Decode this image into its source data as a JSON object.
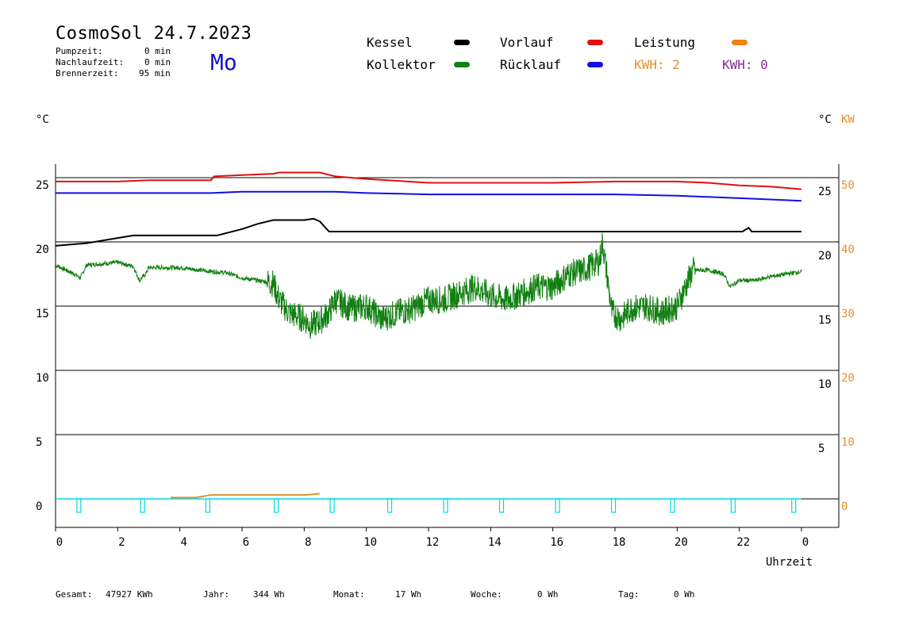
{
  "header": {
    "title": "CosmoSol 24.7.2023",
    "day": "Mo",
    "stats": [
      {
        "label": "Pumpzeit:",
        "value": "0 min"
      },
      {
        "label": "Nachlaufzeit:",
        "value": "0 min"
      },
      {
        "label": "Brennerzeit:",
        "value": "95 min"
      }
    ]
  },
  "legend": {
    "kessel": {
      "label": "Kessel",
      "color": "#000000"
    },
    "vorlauf": {
      "label": "Vorlauf",
      "color": "#e01010"
    },
    "leistung": {
      "label": "Leistung",
      "color": "#f08010"
    },
    "kollektor": {
      "label": "Kollektor",
      "color": "#108010"
    },
    "ruecklauf": {
      "label": "Rücklauf",
      "color": "#1010e0"
    },
    "kwh1": {
      "label": "KWH: 2",
      "color": "#e09030"
    },
    "kwh2": {
      "label": "KWH: 0",
      "color": "#803090"
    }
  },
  "axes": {
    "left_unit": "°C",
    "right_unit": "°C",
    "right_unit2": "KW",
    "xlabel": "Uhrzeit"
  },
  "footer": {
    "gesamt_label": "Gesamt:",
    "gesamt_value": "47927 KWh",
    "jahr_label": "Jahr:",
    "jahr_value": "344 Wh",
    "monat_label": "Monat:",
    "monat_value": "17 Wh",
    "woche_label": "Woche:",
    "woche_value": "0 Wh",
    "tag_label": "Tag:",
    "tag_value": "0 Wh"
  },
  "chart_data": {
    "type": "line",
    "xlim": [
      0,
      24
    ],
    "x_ticks": [
      "0",
      "2",
      "4",
      "6",
      "8",
      "10",
      "12",
      "14",
      "16",
      "18",
      "20",
      "22",
      "0"
    ],
    "ylim": [
      -2,
      26
    ],
    "y_left_ticks": [
      0,
      5,
      10,
      15,
      20,
      25
    ],
    "y_right_ticks_c": [
      5,
      10,
      15,
      20,
      25
    ],
    "y_right_ticks_kw": [
      0,
      10,
      20,
      30,
      40,
      50
    ],
    "grid": "horizontal",
    "series": [
      {
        "name": "Vorlauf",
        "color": "#e01010",
        "x": [
          0,
          2,
          3,
          4,
          5,
          5.1,
          6,
          7,
          7.2,
          8,
          8.5,
          9,
          10,
          12,
          13,
          14,
          16,
          18,
          20,
          21,
          22,
          23,
          24
        ],
        "y": [
          24.7,
          24.7,
          24.8,
          24.8,
          24.8,
          25.1,
          25.2,
          25.3,
          25.4,
          25.4,
          25.4,
          25.1,
          24.9,
          24.6,
          24.6,
          24.6,
          24.6,
          24.7,
          24.7,
          24.6,
          24.4,
          24.3,
          24.1
        ]
      },
      {
        "name": "Rücklauf",
        "color": "#1010e0",
        "x": [
          0,
          2,
          4,
          5,
          6,
          7,
          8,
          9,
          10,
          12,
          14,
          16,
          18,
          20,
          21,
          22,
          23,
          24
        ],
        "y": [
          23.8,
          23.8,
          23.8,
          23.8,
          23.9,
          23.9,
          23.9,
          23.9,
          23.8,
          23.7,
          23.7,
          23.7,
          23.7,
          23.6,
          23.5,
          23.4,
          23.3,
          23.2
        ]
      },
      {
        "name": "Kessel",
        "color": "#000000",
        "x": [
          0,
          1,
          2,
          2.5,
          5.2,
          6,
          6.5,
          7,
          7.5,
          8,
          8.3,
          8.5,
          8.8,
          9.5,
          12,
          16,
          20,
          22.1,
          22.3,
          22.4,
          24
        ],
        "y": [
          19.7,
          19.9,
          20.3,
          20.5,
          20.5,
          21.0,
          21.4,
          21.7,
          21.7,
          21.7,
          21.8,
          21.6,
          20.8,
          20.8,
          20.8,
          20.8,
          20.8,
          20.8,
          21.1,
          20.8,
          20.8
        ]
      },
      {
        "name": "Kollektor",
        "color": "#108010",
        "x": [
          0,
          0.6,
          0.8,
          1.0,
          2.0,
          2.5,
          2.7,
          2.9,
          3.0,
          3.5,
          4.0,
          5.0,
          5.5,
          6.0,
          6.5,
          7.0,
          7.2,
          7.5,
          8.0,
          8.2,
          8.5,
          8.8,
          9.0,
          9.5,
          10.0,
          10.5,
          11.0,
          11.5,
          12.0,
          12.5,
          13.0,
          13.5,
          14.0,
          14.5,
          15.0,
          15.5,
          16.0,
          16.5,
          17.0,
          17.5,
          17.6,
          17.9,
          18.2,
          18.5,
          19.0,
          19.5,
          20.0,
          20.5,
          21.0,
          21.5,
          21.7,
          22.0,
          22.5,
          23.0,
          23.5,
          24.0
        ],
        "y": [
          18.2,
          17.5,
          17.2,
          18.2,
          18.4,
          18.1,
          17.0,
          17.5,
          18.0,
          18.0,
          18.0,
          17.7,
          17.6,
          17.2,
          17.0,
          16.8,
          15.5,
          14.5,
          14.0,
          13.5,
          13.8,
          14.5,
          15.5,
          14.8,
          15.0,
          14.0,
          14.5,
          14.8,
          15.5,
          15.5,
          16.0,
          16.5,
          15.8,
          15.5,
          16.0,
          16.5,
          16.5,
          17.5,
          17.8,
          18.5,
          20.0,
          14.5,
          14.0,
          14.8,
          15.0,
          14.5,
          15.0,
          17.8,
          17.8,
          17.5,
          16.5,
          17.0,
          17.0,
          17.3,
          17.5,
          17.7
        ]
      },
      {
        "name": "Leistung",
        "color": "#e09030",
        "x": [
          3.7,
          4.5,
          5.0,
          6.0,
          7.0,
          8.0,
          8.5
        ],
        "y": [
          0.1,
          0.1,
          0.3,
          0.3,
          0.3,
          0.3,
          0.4
        ]
      }
    ],
    "pump_pulses_x": [
      0.75,
      2.8,
      4.9,
      7.1,
      8.9,
      10.75,
      12.55,
      14.35,
      16.15,
      17.95,
      19.85,
      21.8,
      23.75
    ]
  }
}
